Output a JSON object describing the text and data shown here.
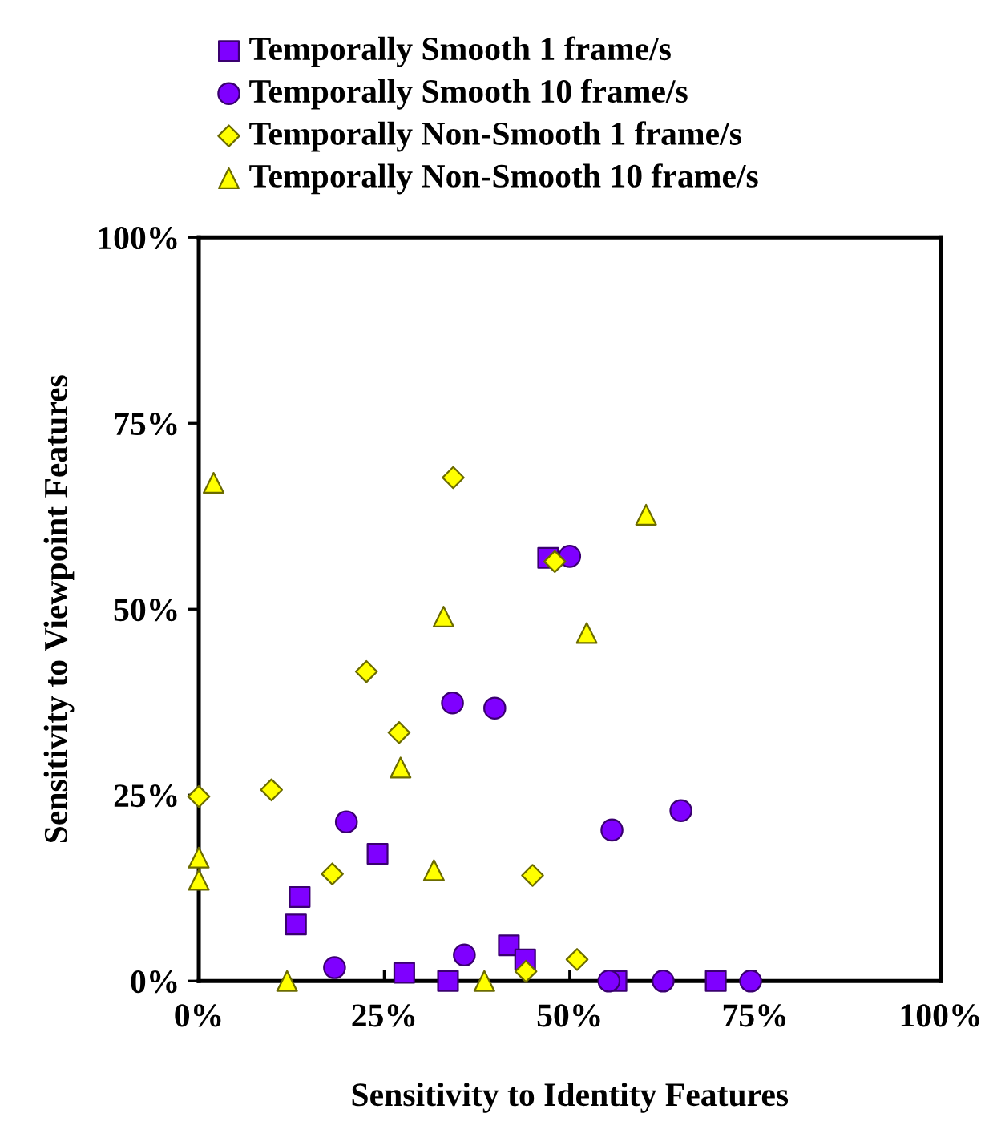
{
  "chart_data": {
    "type": "scatter",
    "xlabel": "Sensitivity to Identity Features",
    "ylabel": "Sensitivity to Viewpoint Features",
    "xlim": [
      0,
      100
    ],
    "ylim": [
      0,
      100
    ],
    "xticks": [
      {
        "value": 0,
        "label": "0%"
      },
      {
        "value": 25,
        "label": "25%"
      },
      {
        "value": 50,
        "label": "50%"
      },
      {
        "value": 75,
        "label": "75%"
      },
      {
        "value": 100,
        "label": "100%"
      }
    ],
    "yticks": [
      {
        "value": 0,
        "label": "0%"
      },
      {
        "value": 25,
        "label": "25%"
      },
      {
        "value": 50,
        "label": "50%"
      },
      {
        "value": 75,
        "label": "75%"
      },
      {
        "value": 100,
        "label": "100%"
      }
    ],
    "grid": false,
    "legend": "top",
    "series": [
      {
        "name": "Temporally Smooth 1 frame/s",
        "color": "#7f00ff",
        "marker": "square",
        "x": [
          13.6,
          13.1,
          24.1,
          27.7,
          33.6,
          41.8,
          44.0,
          47.1,
          56.3,
          69.7
        ],
        "values": [
          11.3,
          7.6,
          17.1,
          1.1,
          0,
          4.8,
          2.9,
          56.9,
          0,
          0
        ]
      },
      {
        "name": "Temporally Smooth 10 frame/s",
        "color": "#7f00ff",
        "marker": "circle",
        "x": [
          18.3,
          19.9,
          34.2,
          39.9,
          35.8,
          50.0,
          55.7,
          65.0,
          55.3,
          62.6,
          74.4
        ],
        "values": [
          1.8,
          21.4,
          37.4,
          36.7,
          3.5,
          57.1,
          20.3,
          22.9,
          0,
          0,
          0
        ]
      },
      {
        "name": "Temporally Non-Smooth 1 frame/s",
        "color": "#ffff00",
        "marker": "diamond",
        "x": [
          0,
          9.8,
          18.0,
          22.6,
          27.0,
          34.3,
          48.0,
          45.0,
          44.1,
          51.0
        ],
        "values": [
          24.8,
          25.7,
          14.4,
          41.6,
          33.4,
          67.7,
          56.4,
          14.2,
          1.3,
          2.9
        ]
      },
      {
        "name": "Temporally Non-Smooth 10 frame/s",
        "color": "#ffff00",
        "marker": "triangle",
        "x": [
          2.0,
          0,
          0,
          11.9,
          27.2,
          33.0,
          31.7,
          38.5,
          52.3,
          60.3
        ],
        "values": [
          67.0,
          16.6,
          13.6,
          0,
          28.7,
          49.0,
          14.9,
          0,
          46.8,
          62.7
        ]
      }
    ]
  }
}
